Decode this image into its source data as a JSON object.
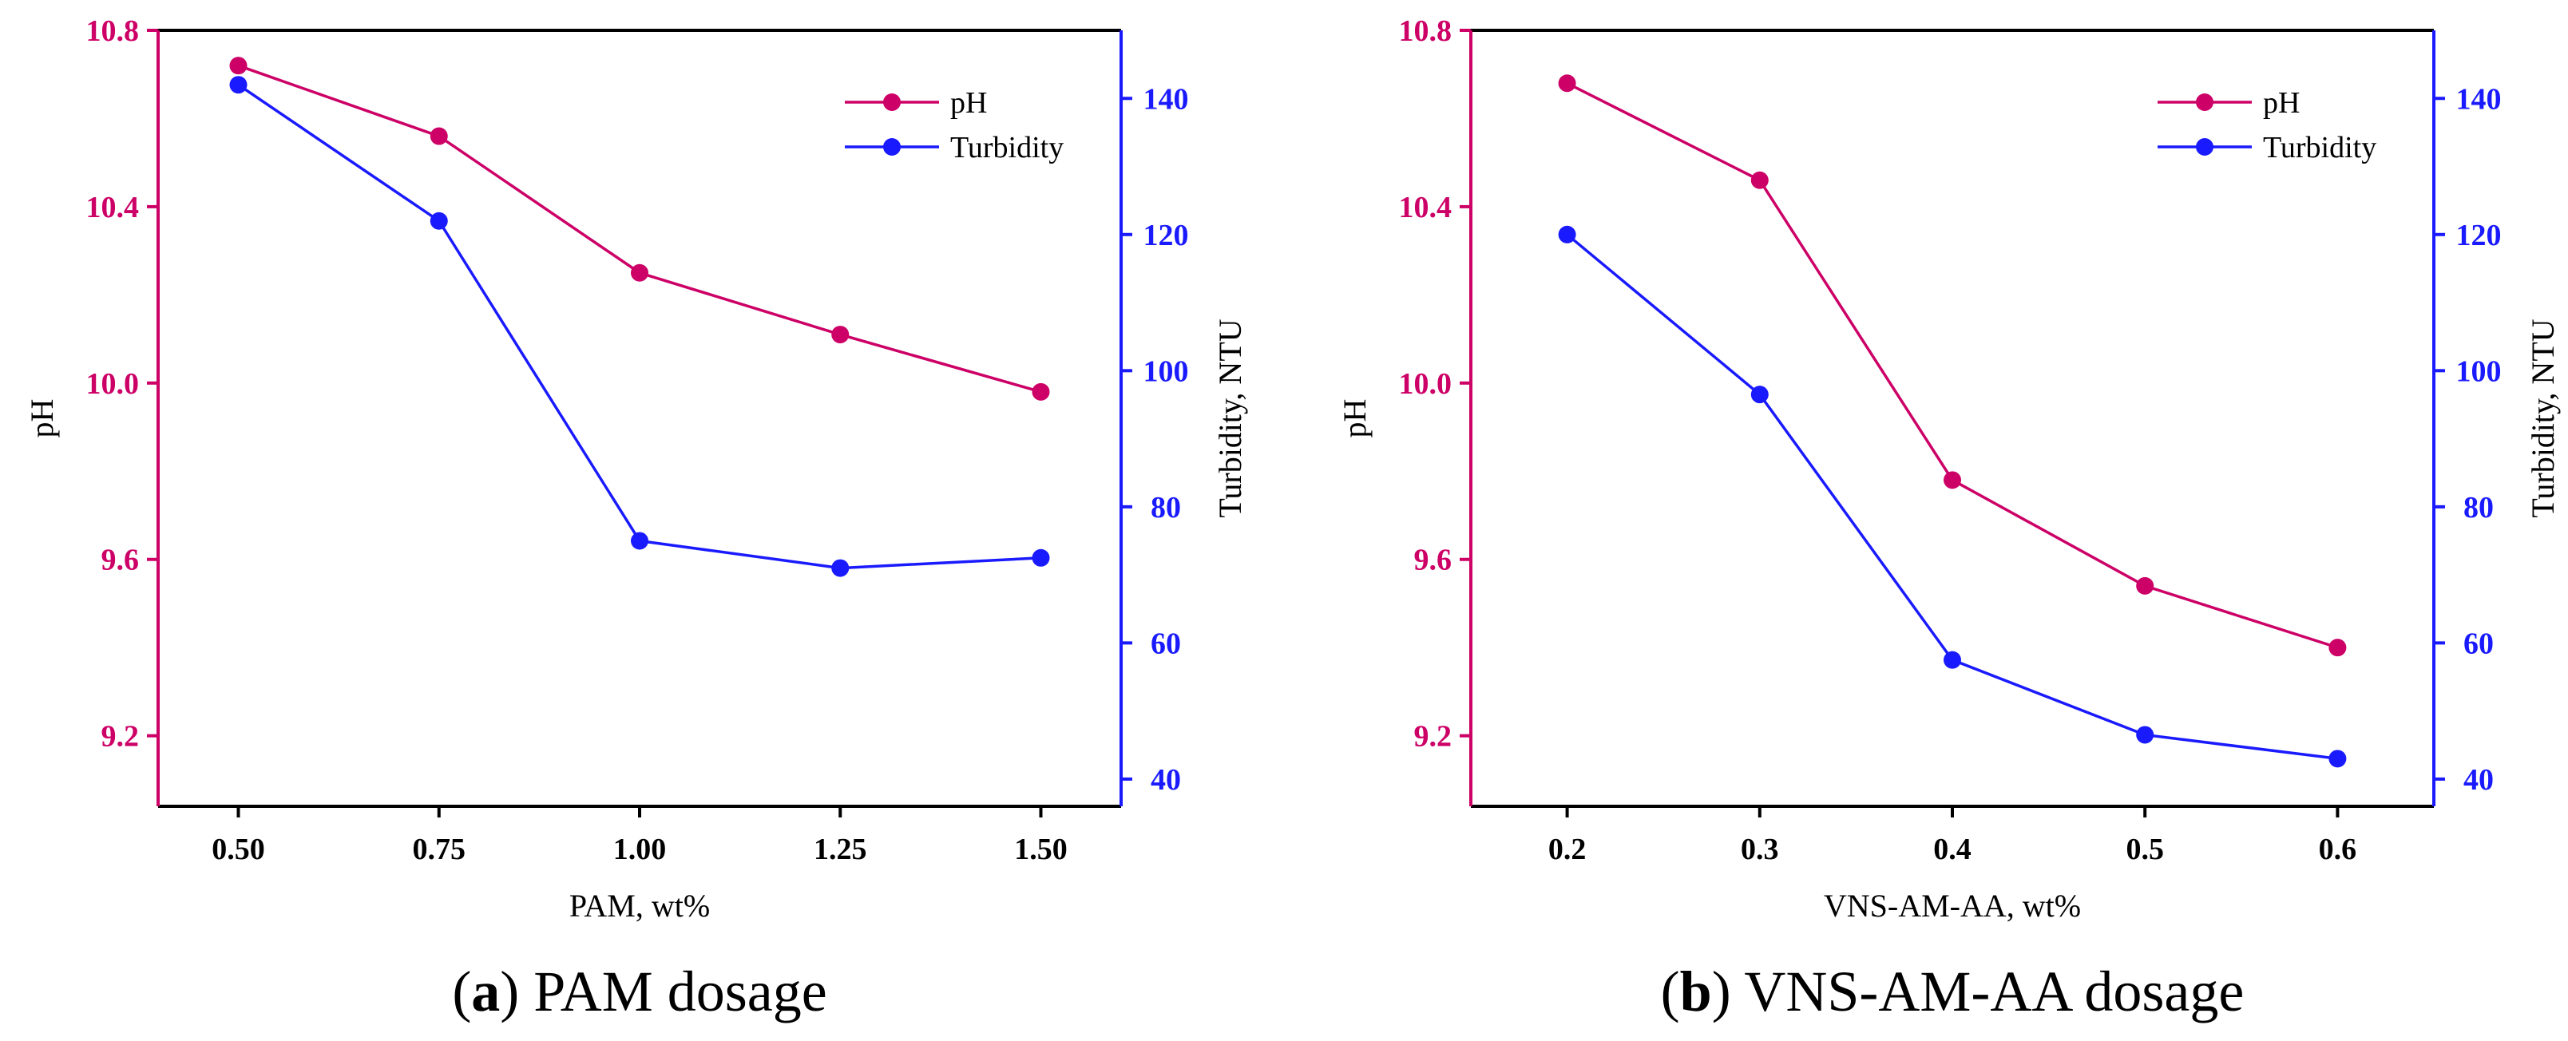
{
  "colors": {
    "ph": "#cc0066",
    "turbidity": "#1a1aff",
    "axis": "#000000"
  },
  "chart_data": [
    {
      "type": "line",
      "caption_letter": "a",
      "caption_open": "(",
      "caption_close": ")",
      "caption_text": " PAM dosage",
      "xlabel": "PAM, wt%",
      "ylabel_left": "pH",
      "ylabel_right": "Turbidity, NTU",
      "xlim": [
        0.4,
        1.6
      ],
      "ylim_left": [
        9.04,
        10.8
      ],
      "ylim_right": [
        36,
        150
      ],
      "x": [
        0.5,
        0.75,
        1.0,
        1.25,
        1.5
      ],
      "x_ticks": [
        "0.50",
        "0.75",
        "1.00",
        "1.25",
        "1.50"
      ],
      "y_left_ticks": [
        "9.2",
        "9.6",
        "10.0",
        "10.4",
        "10.8"
      ],
      "y_right_ticks": [
        "40",
        "60",
        "80",
        "100",
        "120",
        "140"
      ],
      "series": [
        {
          "name": "pH",
          "axis": "left",
          "values": [
            10.72,
            10.56,
            10.25,
            10.11,
            9.98
          ]
        },
        {
          "name": "Turbidity",
          "axis": "right",
          "values": [
            142,
            122,
            75,
            71,
            72.5
          ]
        }
      ],
      "legend": [
        "pH",
        "Turbidity"
      ]
    },
    {
      "type": "line",
      "caption_letter": "b",
      "caption_open": "(",
      "caption_close": ")",
      "caption_text": " VNS-AM-AA dosage",
      "xlabel": "VNS-AM-AA, wt%",
      "ylabel_left": "pH",
      "ylabel_right": "Turbidity, NTU",
      "xlim": [
        0.15,
        0.65
      ],
      "ylim_left": [
        9.04,
        10.8
      ],
      "ylim_right": [
        36,
        150
      ],
      "x": [
        0.2,
        0.3,
        0.4,
        0.5,
        0.6
      ],
      "x_ticks": [
        "0.2",
        "0.3",
        "0.4",
        "0.5",
        "0.6"
      ],
      "y_left_ticks": [
        "9.2",
        "9.6",
        "10.0",
        "10.4",
        "10.8"
      ],
      "y_right_ticks": [
        "40",
        "60",
        "80",
        "100",
        "120",
        "140"
      ],
      "series": [
        {
          "name": "pH",
          "axis": "left",
          "values": [
            10.68,
            10.46,
            9.78,
            9.54,
            9.4
          ]
        },
        {
          "name": "Turbidity",
          "axis": "right",
          "values": [
            120,
            96.5,
            57.5,
            46.5,
            43
          ]
        }
      ],
      "legend": [
        "pH",
        "Turbidity"
      ]
    }
  ]
}
